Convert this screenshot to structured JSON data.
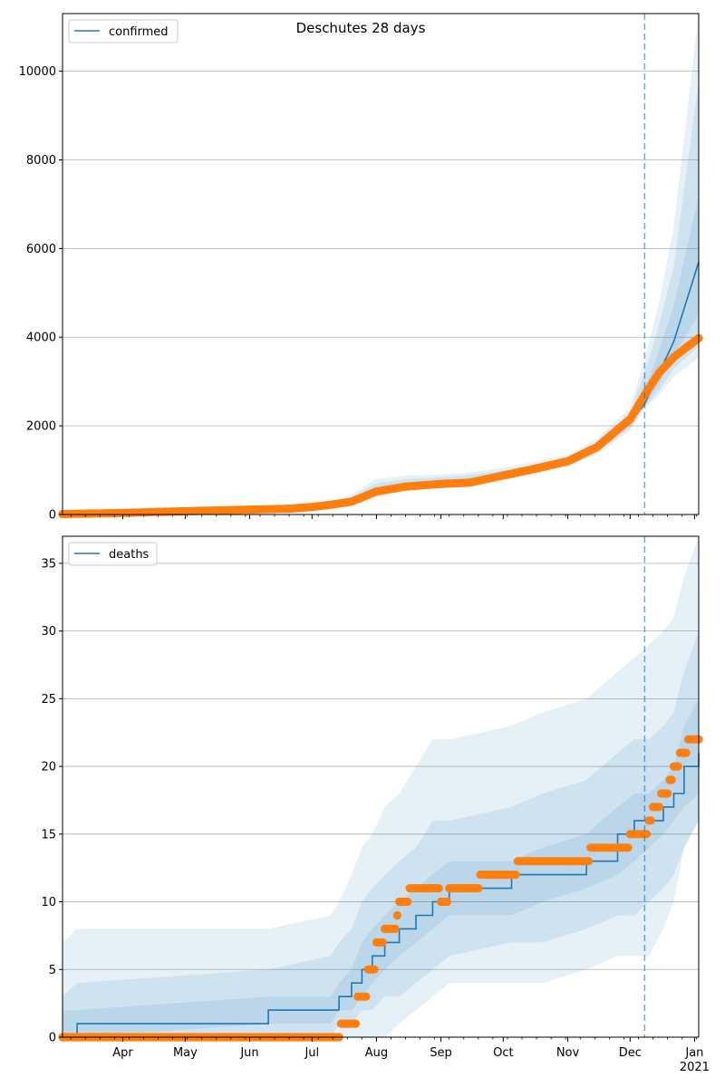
{
  "chart_data": [
    {
      "type": "line",
      "title": "Deschutes 28 days",
      "legend": {
        "label": "confirmed",
        "placement": "top-left"
      },
      "x_range": [
        "2020-03-03",
        "2021-01-03"
      ],
      "ylim": [
        0,
        11300
      ],
      "y_ticks": [
        0,
        2000,
        4000,
        6000,
        8000,
        10000
      ],
      "grid": "horizontal",
      "forecast_start": "2020-12-08",
      "colors": {
        "model": "#1f77b4",
        "observed": "#ff7f0e",
        "band": "#1f77b4"
      },
      "model": {
        "x": [
          "2020-03-03",
          "2020-04-01",
          "2020-05-01",
          "2020-06-01",
          "2020-06-20",
          "2020-07-01",
          "2020-07-10",
          "2020-07-20",
          "2020-08-01",
          "2020-08-15",
          "2020-09-01",
          "2020-09-15",
          "2020-10-01",
          "2020-10-15",
          "2020-11-01",
          "2020-11-15",
          "2020-12-01",
          "2020-12-08",
          "2020-12-15",
          "2020-12-22",
          "2021-01-03"
        ],
        "y": [
          10,
          40,
          80,
          110,
          130,
          170,
          220,
          300,
          500,
          640,
          720,
          780,
          900,
          1030,
          1200,
          1500,
          2080,
          2500,
          3200,
          3900,
          5700
        ]
      },
      "bands": [
        {
          "name": "p05_p95",
          "lower": [
            5,
            30,
            60,
            90,
            110,
            140,
            180,
            230,
            400,
            540,
            620,
            680,
            800,
            920,
            1080,
            1350,
            1900,
            2400,
            2700,
            3100,
            3550
          ],
          "upper": [
            15,
            50,
            100,
            140,
            160,
            210,
            270,
            450,
            800,
            880,
            900,
            950,
            1050,
            1180,
            1350,
            1700,
            2400,
            3500,
            4800,
            6500,
            11500
          ]
        },
        {
          "name": "p10_p90",
          "lower": [
            7,
            33,
            65,
            95,
            115,
            150,
            190,
            250,
            430,
            570,
            650,
            710,
            830,
            950,
            1110,
            1400,
            1950,
            2420,
            2800,
            3300,
            3800
          ],
          "upper": [
            13,
            46,
            92,
            130,
            150,
            195,
            250,
            400,
            700,
            800,
            840,
            890,
            990,
            1120,
            1300,
            1630,
            2300,
            3200,
            4300,
            5600,
            9800
          ]
        },
        {
          "name": "p25_p75",
          "lower": [
            8,
            36,
            72,
            102,
            122,
            160,
            205,
            275,
            470,
            610,
            690,
            750,
            870,
            990,
            1160,
            1450,
            2020,
            2460,
            2950,
            3600,
            4500
          ],
          "upper": [
            12,
            44,
            88,
            120,
            140,
            182,
            235,
            340,
            580,
            700,
            770,
            820,
            940,
            1070,
            1250,
            1570,
            2180,
            2800,
            3700,
            4700,
            7200
          ]
        }
      ],
      "observed": {
        "x": [
          "2020-03-03",
          "2020-04-01",
          "2020-05-01",
          "2020-06-01",
          "2020-06-20",
          "2020-07-01",
          "2020-07-10",
          "2020-07-20",
          "2020-08-01",
          "2020-08-15",
          "2020-09-01",
          "2020-09-15",
          "2020-10-01",
          "2020-10-15",
          "2020-11-01",
          "2020-11-15",
          "2020-12-01",
          "2020-12-08",
          "2020-12-15",
          "2020-12-22",
          "2021-01-03"
        ],
        "y": [
          10,
          35,
          75,
          110,
          130,
          170,
          220,
          290,
          520,
          630,
          690,
          720,
          880,
          1020,
          1200,
          1520,
          2150,
          2700,
          3200,
          3550,
          3980
        ]
      }
    },
    {
      "type": "line",
      "legend": {
        "label": "deaths",
        "placement": "top-left"
      },
      "x_range": [
        "2020-03-03",
        "2021-01-03"
      ],
      "ylim": [
        0,
        37
      ],
      "y_ticks": [
        0,
        5,
        10,
        15,
        20,
        25,
        30,
        35
      ],
      "grid": "horizontal",
      "forecast_start": "2020-12-08",
      "x_ticks": [
        {
          "date": "2020-04-01",
          "label": "Apr"
        },
        {
          "date": "2020-05-01",
          "label": "May"
        },
        {
          "date": "2020-06-01",
          "label": "Jun"
        },
        {
          "date": "2020-07-01",
          "label": "Jul"
        },
        {
          "date": "2020-08-01",
          "label": "Aug"
        },
        {
          "date": "2020-09-01",
          "label": "Sep"
        },
        {
          "date": "2020-10-01",
          "label": "Oct"
        },
        {
          "date": "2020-11-01",
          "label": "Nov"
        },
        {
          "date": "2020-12-01",
          "label": "Dec"
        },
        {
          "date": "2021-01-01",
          "label": "Jan\n2021"
        }
      ],
      "colors": {
        "model": "#1f77b4",
        "observed": "#ff7f0e",
        "band": "#1f77b4"
      },
      "model": {
        "x": [
          "2020-03-03",
          "2020-03-10",
          "2020-06-10",
          "2020-07-10",
          "2020-07-14",
          "2020-07-20",
          "2020-07-25",
          "2020-07-30",
          "2020-08-05",
          "2020-08-12",
          "2020-08-20",
          "2020-08-28",
          "2020-09-05",
          "2020-10-05",
          "2020-10-20",
          "2020-11-10",
          "2020-11-25",
          "2020-12-03",
          "2020-12-10",
          "2020-12-17",
          "2020-12-22",
          "2020-12-27",
          "2021-01-03"
        ],
        "y": [
          0,
          1,
          2,
          2,
          3,
          4,
          5,
          6,
          7,
          8,
          9,
          10,
          11,
          12,
          12,
          13,
          15,
          16,
          16,
          17,
          18,
          20,
          21
        ]
      },
      "bands": [
        {
          "name": "p05_p95",
          "lower": [
            0,
            0,
            0,
            0,
            0,
            0,
            0,
            0,
            0,
            1,
            2,
            3,
            4,
            4,
            4,
            5,
            6,
            6,
            6,
            8,
            10,
            14,
            16
          ],
          "upper": [
            7,
            8,
            8,
            9,
            10,
            12,
            14,
            15,
            17,
            18,
            20,
            22,
            22,
            23,
            24,
            25,
            27,
            28,
            29,
            30,
            31,
            34,
            37
          ]
        },
        {
          "name": "p10_p90",
          "lower": [
            0,
            0,
            0,
            0,
            1,
            1,
            2,
            2,
            3,
            3,
            4,
            5,
            6,
            7,
            7,
            8,
            9,
            9,
            10,
            11,
            12,
            14,
            16
          ],
          "upper": [
            3,
            4,
            5,
            6,
            7,
            8,
            10,
            11,
            12,
            13,
            14,
            16,
            16,
            17,
            18,
            19,
            21,
            22,
            22,
            23,
            24,
            27,
            30
          ]
        },
        {
          "name": "p25_p75",
          "lower": [
            0,
            0,
            1,
            1,
            2,
            2,
            3,
            4,
            5,
            6,
            7,
            8,
            9,
            9,
            10,
            11,
            12,
            13,
            14,
            15,
            16,
            17,
            18
          ],
          "upper": [
            2,
            2,
            3,
            3,
            4,
            5,
            7,
            8,
            9,
            10,
            11,
            12,
            13,
            13,
            14,
            15,
            17,
            18,
            18,
            19,
            20,
            23,
            25
          ]
        }
      ],
      "observed": {
        "x": [
          "2020-03-03",
          "2020-05-01",
          "2020-07-14",
          "2020-07-15",
          "2020-07-21",
          "2020-07-23",
          "2020-07-26",
          "2020-07-28",
          "2020-07-30",
          "2020-08-01",
          "2020-08-05",
          "2020-08-08",
          "2020-08-11",
          "2020-08-12",
          "2020-08-14",
          "2020-08-17",
          "2020-08-22",
          "2020-08-28",
          "2020-09-01",
          "2020-09-05",
          "2020-09-07",
          "2020-09-20",
          "2020-10-05",
          "2020-10-08",
          "2020-10-20",
          "2020-11-01",
          "2020-11-10",
          "2020-11-12",
          "2020-11-20",
          "2020-11-28",
          "2020-12-01",
          "2020-12-08",
          "2020-12-09",
          "2020-12-10",
          "2020-12-12",
          "2020-12-14",
          "2020-12-16",
          "2020-12-18",
          "2020-12-20",
          "2020-12-22",
          "2020-12-24",
          "2020-12-25",
          "2020-12-27",
          "2020-12-29",
          "2021-01-01",
          "2021-01-03"
        ],
        "y": [
          0,
          0,
          0,
          1,
          1,
          3,
          3,
          5,
          5,
          7,
          8,
          8,
          9,
          10,
          10,
          11,
          11,
          11,
          10,
          11,
          11,
          12,
          12,
          13,
          13,
          13,
          13,
          14,
          14,
          14,
          15,
          15,
          15,
          16,
          17,
          17,
          18,
          18,
          19,
          20,
          20,
          21,
          21,
          22,
          22,
          22
        ]
      }
    }
  ]
}
